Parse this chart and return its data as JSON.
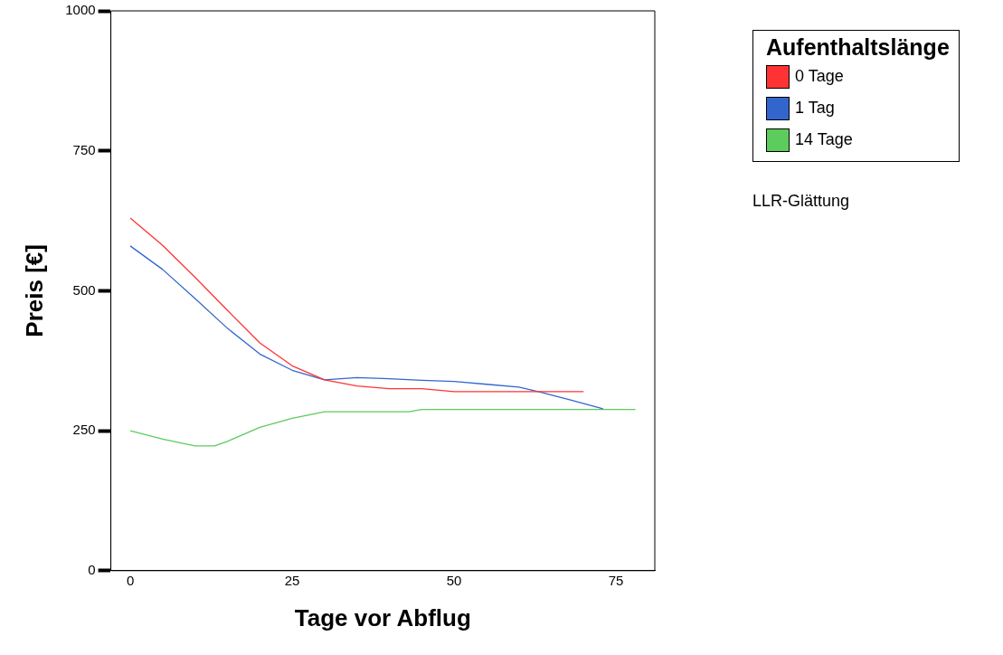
{
  "chart_data": {
    "type": "line",
    "xlabel": "Tage vor Abflug",
    "ylabel": "Preis [€]",
    "legend_title": "Aufenthaltslänge",
    "legend": "top right",
    "grid": false,
    "marker": "none",
    "line_style": "solid",
    "xlim": [
      -3,
      81
    ],
    "xticks": [
      0,
      25,
      50,
      75
    ],
    "ylim": [
      0,
      1000
    ],
    "yticks": [
      0,
      250,
      500,
      750,
      1000
    ],
    "annotations": [
      "LLR-Glättung"
    ],
    "series": [
      {
        "name": "0 Tage",
        "color": "#ff3333",
        "x": [
          0,
          5,
          10,
          15,
          20,
          25,
          30,
          35,
          40,
          45,
          50,
          55,
          60,
          65,
          70
        ],
        "values": [
          630,
          581,
          524,
          465,
          407,
          366,
          341,
          330,
          325,
          325,
          320,
          320,
          320,
          320,
          320
        ]
      },
      {
        "name": "1 Tag",
        "color": "#3366cc",
        "x": [
          0,
          5,
          10,
          15,
          20,
          25,
          30,
          35,
          40,
          45,
          50,
          55,
          60,
          63,
          68,
          73
        ],
        "values": [
          580,
          538,
          486,
          433,
          387,
          358,
          341,
          345,
          343,
          340,
          338,
          333,
          328,
          320,
          305,
          289
        ]
      },
      {
        "name": "14 Tage",
        "color": "#5ccc5c",
        "x": [
          0,
          5,
          10,
          13,
          15,
          20,
          25,
          30,
          35,
          40,
          43,
          45,
          50,
          55,
          60,
          65,
          70,
          75,
          78
        ],
        "values": [
          250,
          235,
          223,
          223,
          231,
          256,
          272,
          284,
          284,
          284,
          284,
          288,
          288,
          288,
          288,
          288,
          288,
          288,
          288
        ]
      }
    ]
  }
}
